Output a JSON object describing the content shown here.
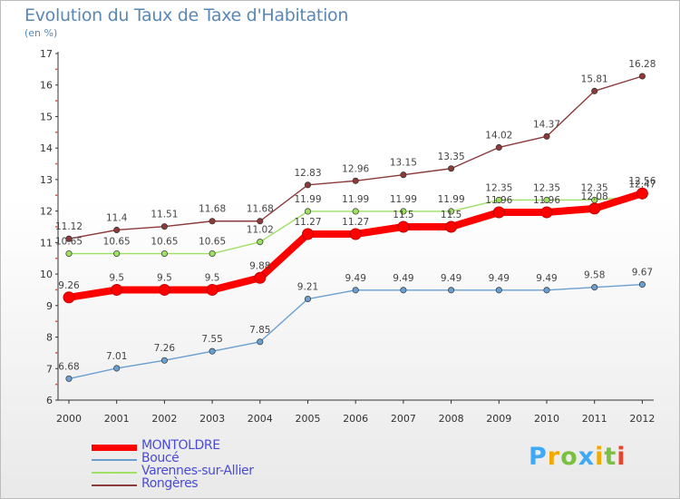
{
  "chart_data": {
    "type": "line",
    "title": "Evolution du Taux de Taxe d'Habitation",
    "subtitle": "(en %)",
    "categories": [
      "2000",
      "2001",
      "2002",
      "2003",
      "2004",
      "2005",
      "2006",
      "2007",
      "2008",
      "2009",
      "2010",
      "2011",
      "2012"
    ],
    "ylim": [
      6,
      17
    ],
    "yticks": [
      6,
      7,
      8,
      9,
      10,
      11,
      12,
      13,
      14,
      15,
      16,
      17
    ],
    "grid": false,
    "legend_position": "bottom-left",
    "series": [
      {
        "name": "MONTOLDRE",
        "color": "#ff0000",
        "values": [
          9.26,
          9.5,
          9.5,
          9.5,
          9.88,
          11.27,
          11.27,
          11.5,
          11.5,
          11.96,
          11.96,
          12.08,
          12.56
        ],
        "labels": [
          "9.26",
          "9.5",
          "9.5",
          "9.5",
          "9.88",
          "11.27",
          "11.27",
          "11.5",
          "11.5",
          "11.96",
          "11.96",
          "12.08",
          "12.56"
        ]
      },
      {
        "name": "Boucé",
        "color": "#6a9fd0",
        "values": [
          6.68,
          7.01,
          7.26,
          7.55,
          7.85,
          9.21,
          9.49,
          9.49,
          9.49,
          9.49,
          9.49,
          9.58,
          9.67
        ],
        "labels": [
          "6.68",
          "7.01",
          "7.26",
          "7.55",
          "7.85",
          "9.21",
          "9.49",
          "9.49",
          "9.49",
          "9.49",
          "9.49",
          "9.58",
          "9.67"
        ]
      },
      {
        "name": "Varennes-sur-Allier",
        "color": "#9ee063",
        "values": [
          10.65,
          10.65,
          10.65,
          10.65,
          11.02,
          11.99,
          11.99,
          11.99,
          11.99,
          12.35,
          12.35,
          12.35,
          12.47
        ],
        "labels": [
          "10.65",
          "10.65",
          "10.65",
          "10.65",
          "11.02",
          "11.99",
          "11.99",
          "11.99",
          "11.99",
          "12.35",
          "12.35",
          "12.35",
          "12.47"
        ]
      },
      {
        "name": "Rongères",
        "color": "#8b3a3a",
        "values": [
          11.12,
          11.4,
          11.51,
          11.68,
          11.68,
          12.83,
          12.96,
          13.15,
          13.35,
          14.02,
          14.37,
          15.81,
          16.28
        ],
        "labels": [
          "11.12",
          "11.4",
          "11.51",
          "11.68",
          "11.68",
          "12.83",
          "12.96",
          "13.15",
          "13.35",
          "14.02",
          "14.37",
          "15.81",
          "16.28"
        ]
      }
    ]
  },
  "legend": {
    "items": [
      {
        "label": "MONTOLDRE",
        "color": "#ff0000"
      },
      {
        "label": "Boucé",
        "color": "#6a9fd0"
      },
      {
        "label": "Varennes-sur-Allier",
        "color": "#9ee063"
      },
      {
        "label": "Rongères",
        "color": "#8b3a3a"
      }
    ]
  },
  "brand": {
    "letters": [
      "P",
      "r",
      "o",
      "x",
      "i",
      "t",
      "i"
    ],
    "colors": [
      "#3fa9f5",
      "#f2a900",
      "#7ac142",
      "#3fa9f5",
      "#f2a900",
      "#7ac142",
      "#e8452c"
    ]
  }
}
